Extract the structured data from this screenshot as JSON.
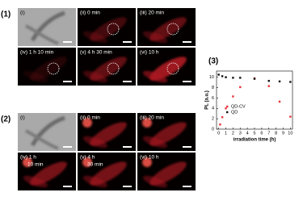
{
  "figure": {
    "panels": [
      {
        "label": "(1)",
        "cells": [
          {
            "lines": [
              "(i)"
            ]
          },
          {
            "lines": [
              "(ii) 0 min"
            ]
          },
          {
            "lines": [
              "(iii) 20 min"
            ]
          },
          {
            "lines": [
              "(iv) 1 h 10 min"
            ]
          },
          {
            "lines": [
              "(v) 4 h 30 min"
            ]
          },
          {
            "lines": [
              "(vi) 10 h"
            ]
          }
        ]
      },
      {
        "label": "(2)",
        "cells": [
          {
            "lines": [
              "(i)"
            ]
          },
          {
            "lines": [
              "(ii) 0 min"
            ]
          },
          {
            "lines": [
              "(iii) 20 min"
            ]
          },
          {
            "lines": [
              "(iv) 1 h",
              "10 min"
            ]
          },
          {
            "lines": [
              "(v) 4 h",
              "30 min"
            ]
          },
          {
            "lines": [
              "(vi) 10 h"
            ]
          }
        ]
      }
    ],
    "chart_label": "(3)"
  },
  "chart_data": {
    "type": "scatter",
    "xlabel": "irradiation time (h)",
    "ylabel": "PL (a.u.)",
    "xlim": [
      -0.3,
      10.3
    ],
    "ylim": [
      0,
      11.2
    ],
    "xticks": [
      0,
      1,
      2,
      3,
      4,
      5,
      6,
      7,
      8,
      9,
      10
    ],
    "yticks": [
      0,
      2,
      4,
      6,
      8,
      10
    ],
    "series": [
      {
        "name": "QD-CV",
        "color": "#e8333a",
        "x": [
          0.2,
          0.5,
          1,
          2,
          3,
          5,
          7,
          8.5,
          10
        ],
        "values": [
          0.9,
          2.3,
          4.0,
          6.3,
          8.1,
          9.8,
          8.3,
          5.3,
          2.4
        ]
      },
      {
        "name": "QD",
        "color": "#111111",
        "x": [
          0,
          0.5,
          1,
          2,
          3,
          5,
          7,
          8.5,
          10
        ],
        "values": [
          10.5,
          10.2,
          10.0,
          9.9,
          9.9,
          9.7,
          9.3,
          9.2,
          9.1
        ]
      }
    ],
    "legend": "lower-left"
  }
}
